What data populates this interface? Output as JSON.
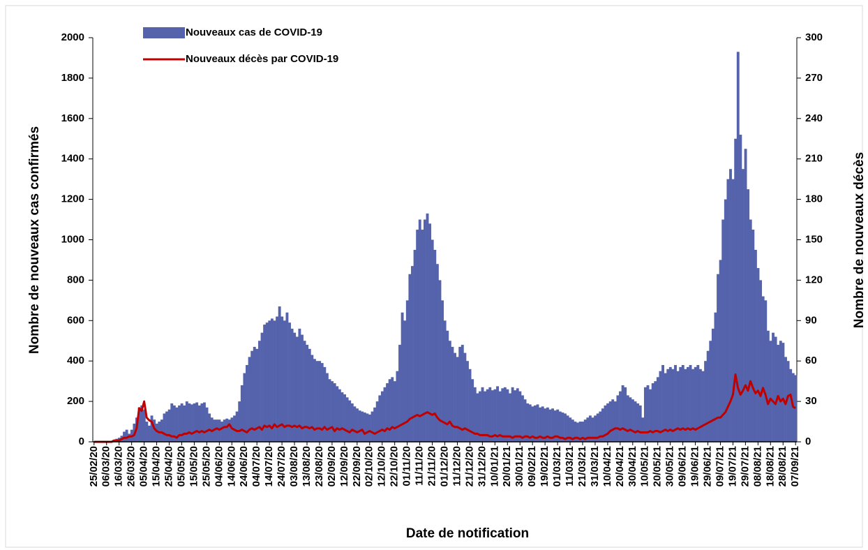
{
  "chart_data": {
    "type": "bar-line",
    "xlabel": "Date de notification",
    "ylabel": "Nombre de nouveaux cas confirmés",
    "y2label": "Nombre de nouveaux décès",
    "ylim": [
      0,
      2000
    ],
    "yticks": [
      0,
      200,
      400,
      600,
      800,
      1000,
      1200,
      1400,
      1600,
      1800,
      2000
    ],
    "y2lim": [
      0,
      300
    ],
    "y2ticks": [
      0,
      30,
      60,
      90,
      120,
      150,
      180,
      210,
      240,
      270,
      300
    ],
    "legend": "top-left",
    "categories": [
      "25/02/20",
      null,
      null,
      null,
      null,
      "06/03/20",
      null,
      null,
      null,
      null,
      "16/03/20",
      null,
      null,
      null,
      null,
      "26/03/20",
      null,
      null,
      null,
      null,
      "05/04/20",
      null,
      null,
      null,
      null,
      "15/04/20",
      null,
      null,
      null,
      null,
      "25/04/20",
      null,
      null,
      null,
      null,
      "05/05/20",
      null,
      null,
      null,
      null,
      "15/05/20",
      null,
      null,
      null,
      null,
      "25/05/20",
      null,
      null,
      null,
      null,
      "04/06/20",
      null,
      null,
      null,
      null,
      "14/06/20",
      null,
      null,
      null,
      null,
      "24/06/20",
      null,
      null,
      null,
      null,
      "04/07/20",
      null,
      null,
      null,
      null,
      "14/07/20",
      null,
      null,
      null,
      null,
      "24/07/20",
      null,
      null,
      null,
      null,
      "03/08/20",
      null,
      null,
      null,
      null,
      "13/08/20",
      null,
      null,
      null,
      null,
      "23/08/20",
      null,
      null,
      null,
      null,
      "02/09/20",
      null,
      null,
      null,
      null,
      "12/09/20",
      null,
      null,
      null,
      null,
      "22/09/20",
      null,
      null,
      null,
      null,
      "02/10/20",
      null,
      null,
      null,
      null,
      "12/10/20",
      null,
      null,
      null,
      null,
      "22/10/20",
      null,
      null,
      null,
      null,
      "01/11/20",
      null,
      null,
      null,
      null,
      "11/11/20",
      null,
      null,
      null,
      null,
      "21/11/20",
      null,
      null,
      null,
      null,
      "01/12/20",
      null,
      null,
      null,
      null,
      "11/12/20",
      null,
      null,
      null,
      null,
      "21/12/20",
      null,
      null,
      null,
      null,
      "31/12/20",
      null,
      null,
      null,
      null,
      "10/01/21",
      null,
      null,
      null,
      null,
      "20/01/21",
      null,
      null,
      null,
      null,
      "30/01/21",
      null,
      null,
      null,
      null,
      "09/02/21",
      null,
      null,
      null,
      null,
      "19/02/21",
      null,
      null,
      null,
      null,
      "01/03/21",
      null,
      null,
      null,
      null,
      "11/03/21",
      null,
      null,
      null,
      null,
      "21/03/21",
      null,
      null,
      null,
      null,
      "31/03/21",
      null,
      null,
      null,
      null,
      "10/04/21",
      null,
      null,
      null,
      null,
      "20/04/21",
      null,
      null,
      null,
      null,
      "30/04/21",
      null,
      null,
      null,
      null,
      "10/05/21",
      null,
      null,
      null,
      null,
      "20/05/21",
      null,
      null,
      null,
      null,
      "30/05/21",
      null,
      null,
      null,
      null,
      "09/06/21",
      null,
      null,
      null,
      null,
      "19/06/21",
      null,
      null,
      null,
      null,
      "29/06/21",
      null,
      null,
      null,
      null,
      "09/07/21",
      null,
      null,
      null,
      null,
      "19/07/21",
      null,
      null,
      null,
      null,
      "29/07/21",
      null,
      null,
      null,
      null,
      "08/08/21",
      null,
      null,
      null,
      null,
      "18/08/21",
      null,
      null,
      null,
      null,
      "28/08/21",
      null,
      null,
      null,
      null,
      "07/09/21"
    ],
    "series": [
      {
        "name": "Nouveaux cas de COVID-19",
        "type": "bar",
        "color": "#5563ac",
        "values": [
          0,
          0,
          0,
          0,
          0,
          0,
          2,
          5,
          10,
          15,
          20,
          30,
          50,
          60,
          40,
          60,
          90,
          120,
          170,
          180,
          160,
          100,
          80,
          130,
          110,
          90,
          100,
          110,
          140,
          150,
          160,
          190,
          180,
          170,
          180,
          190,
          180,
          200,
          190,
          185,
          190,
          195,
          180,
          190,
          195,
          170,
          140,
          120,
          110,
          110,
          110,
          100,
          110,
          115,
          110,
          120,
          130,
          150,
          200,
          280,
          340,
          380,
          420,
          450,
          470,
          460,
          500,
          540,
          580,
          590,
          600,
          610,
          600,
          620,
          670,
          620,
          600,
          640,
          590,
          560,
          540,
          520,
          560,
          530,
          500,
          480,
          460,
          430,
          410,
          400,
          400,
          390,
          370,
          340,
          310,
          300,
          290,
          275,
          260,
          245,
          235,
          220,
          205,
          190,
          175,
          165,
          155,
          150,
          145,
          140,
          135,
          150,
          170,
          200,
          230,
          250,
          270,
          290,
          310,
          320,
          300,
          350,
          480,
          640,
          600,
          700,
          830,
          870,
          950,
          1050,
          1100,
          1050,
          1100,
          1130,
          1080,
          1000,
          950,
          880,
          800,
          700,
          600,
          550,
          500,
          470,
          440,
          420,
          470,
          480,
          440,
          400,
          360,
          310,
          270,
          240,
          250,
          270,
          250,
          260,
          270,
          255,
          260,
          275,
          250,
          265,
          270,
          260,
          240,
          270,
          255,
          265,
          250,
          230,
          210,
          190,
          185,
          175,
          180,
          185,
          170,
          175,
          165,
          170,
          160,
          165,
          155,
          160,
          150,
          145,
          140,
          130,
          120,
          110,
          100,
          95,
          100,
          100,
          110,
          120,
          130,
          120,
          130,
          140,
          150,
          165,
          180,
          190,
          200,
          210,
          200,
          230,
          250,
          280,
          270,
          230,
          220,
          210,
          200,
          190,
          180,
          120,
          270,
          280,
          260,
          290,
          300,
          320,
          350,
          380,
          340,
          360,
          370,
          360,
          380,
          350,
          370,
          380,
          360,
          370,
          380,
          360,
          370,
          380,
          360,
          350,
          400,
          450,
          500,
          560,
          640,
          830,
          900,
          1100,
          1200,
          1300,
          1350,
          1300,
          1500,
          1930,
          1520,
          1350,
          1450,
          1250,
          1100,
          1050,
          950,
          860,
          800,
          720,
          700,
          550,
          500,
          540,
          520,
          480,
          500,
          490,
          420,
          400,
          360,
          340,
          330
        ]
      },
      {
        "name": "Nouveaux décès par COVID-19",
        "type": "line",
        "axis": "y2",
        "color": "#c00000",
        "values": [
          0,
          0,
          0,
          0,
          0,
          0,
          0,
          0,
          1,
          1,
          1,
          2,
          3,
          3,
          4,
          4,
          5,
          10,
          25,
          23,
          30,
          18,
          16,
          15,
          10,
          8,
          7,
          7,
          6,
          5,
          5,
          4,
          4,
          3,
          5,
          5,
          6,
          6,
          7,
          6,
          7,
          8,
          7,
          8,
          7,
          8,
          9,
          8,
          9,
          10,
          9,
          10,
          11,
          11,
          13,
          10,
          9,
          8,
          8,
          9,
          8,
          7,
          9,
          10,
          9,
          10,
          11,
          9,
          12,
          11,
          12,
          10,
          13,
          11,
          12,
          13,
          11,
          12,
          12,
          11,
          12,
          11,
          12,
          10,
          11,
          11,
          10,
          11,
          9,
          10,
          10,
          9,
          11,
          9,
          10,
          11,
          8,
          10,
          9,
          10,
          9,
          8,
          7,
          9,
          8,
          7,
          8,
          9,
          6,
          7,
          8,
          7,
          6,
          7,
          8,
          9,
          8,
          10,
          9,
          11,
          10,
          11,
          12,
          13,
          14,
          15,
          17,
          18,
          19,
          20,
          19,
          20,
          21,
          22,
          21,
          20,
          21,
          18,
          16,
          15,
          14,
          13,
          15,
          12,
          11,
          11,
          10,
          9,
          10,
          9,
          8,
          7,
          6,
          6,
          5,
          5,
          5,
          5,
          4,
          4,
          5,
          4,
          5,
          4,
          4,
          4,
          4,
          3,
          4,
          4,
          4,
          3,
          4,
          4,
          3,
          4,
          3,
          3,
          4,
          3,
          3,
          4,
          3,
          3,
          4,
          4,
          3,
          3,
          2,
          3,
          3,
          2,
          3,
          3,
          2,
          3,
          2,
          3,
          3,
          3,
          3,
          3,
          4,
          4,
          5,
          6,
          8,
          9,
          10,
          10,
          9,
          10,
          9,
          8,
          9,
          8,
          7,
          8,
          7,
          7,
          7,
          7,
          8,
          7,
          8,
          8,
          7,
          8,
          9,
          8,
          9,
          8,
          9,
          10,
          9,
          10,
          9,
          10,
          9,
          10,
          9,
          10,
          11,
          12,
          13,
          14,
          15,
          16,
          17,
          18,
          18,
          20,
          22,
          26,
          30,
          35,
          50,
          40,
          35,
          38,
          42,
          38,
          45,
          40,
          36,
          38,
          34,
          40,
          35,
          28,
          32,
          30,
          28,
          34,
          30,
          32,
          28,
          34,
          35,
          26,
          25
        ]
      }
    ]
  }
}
